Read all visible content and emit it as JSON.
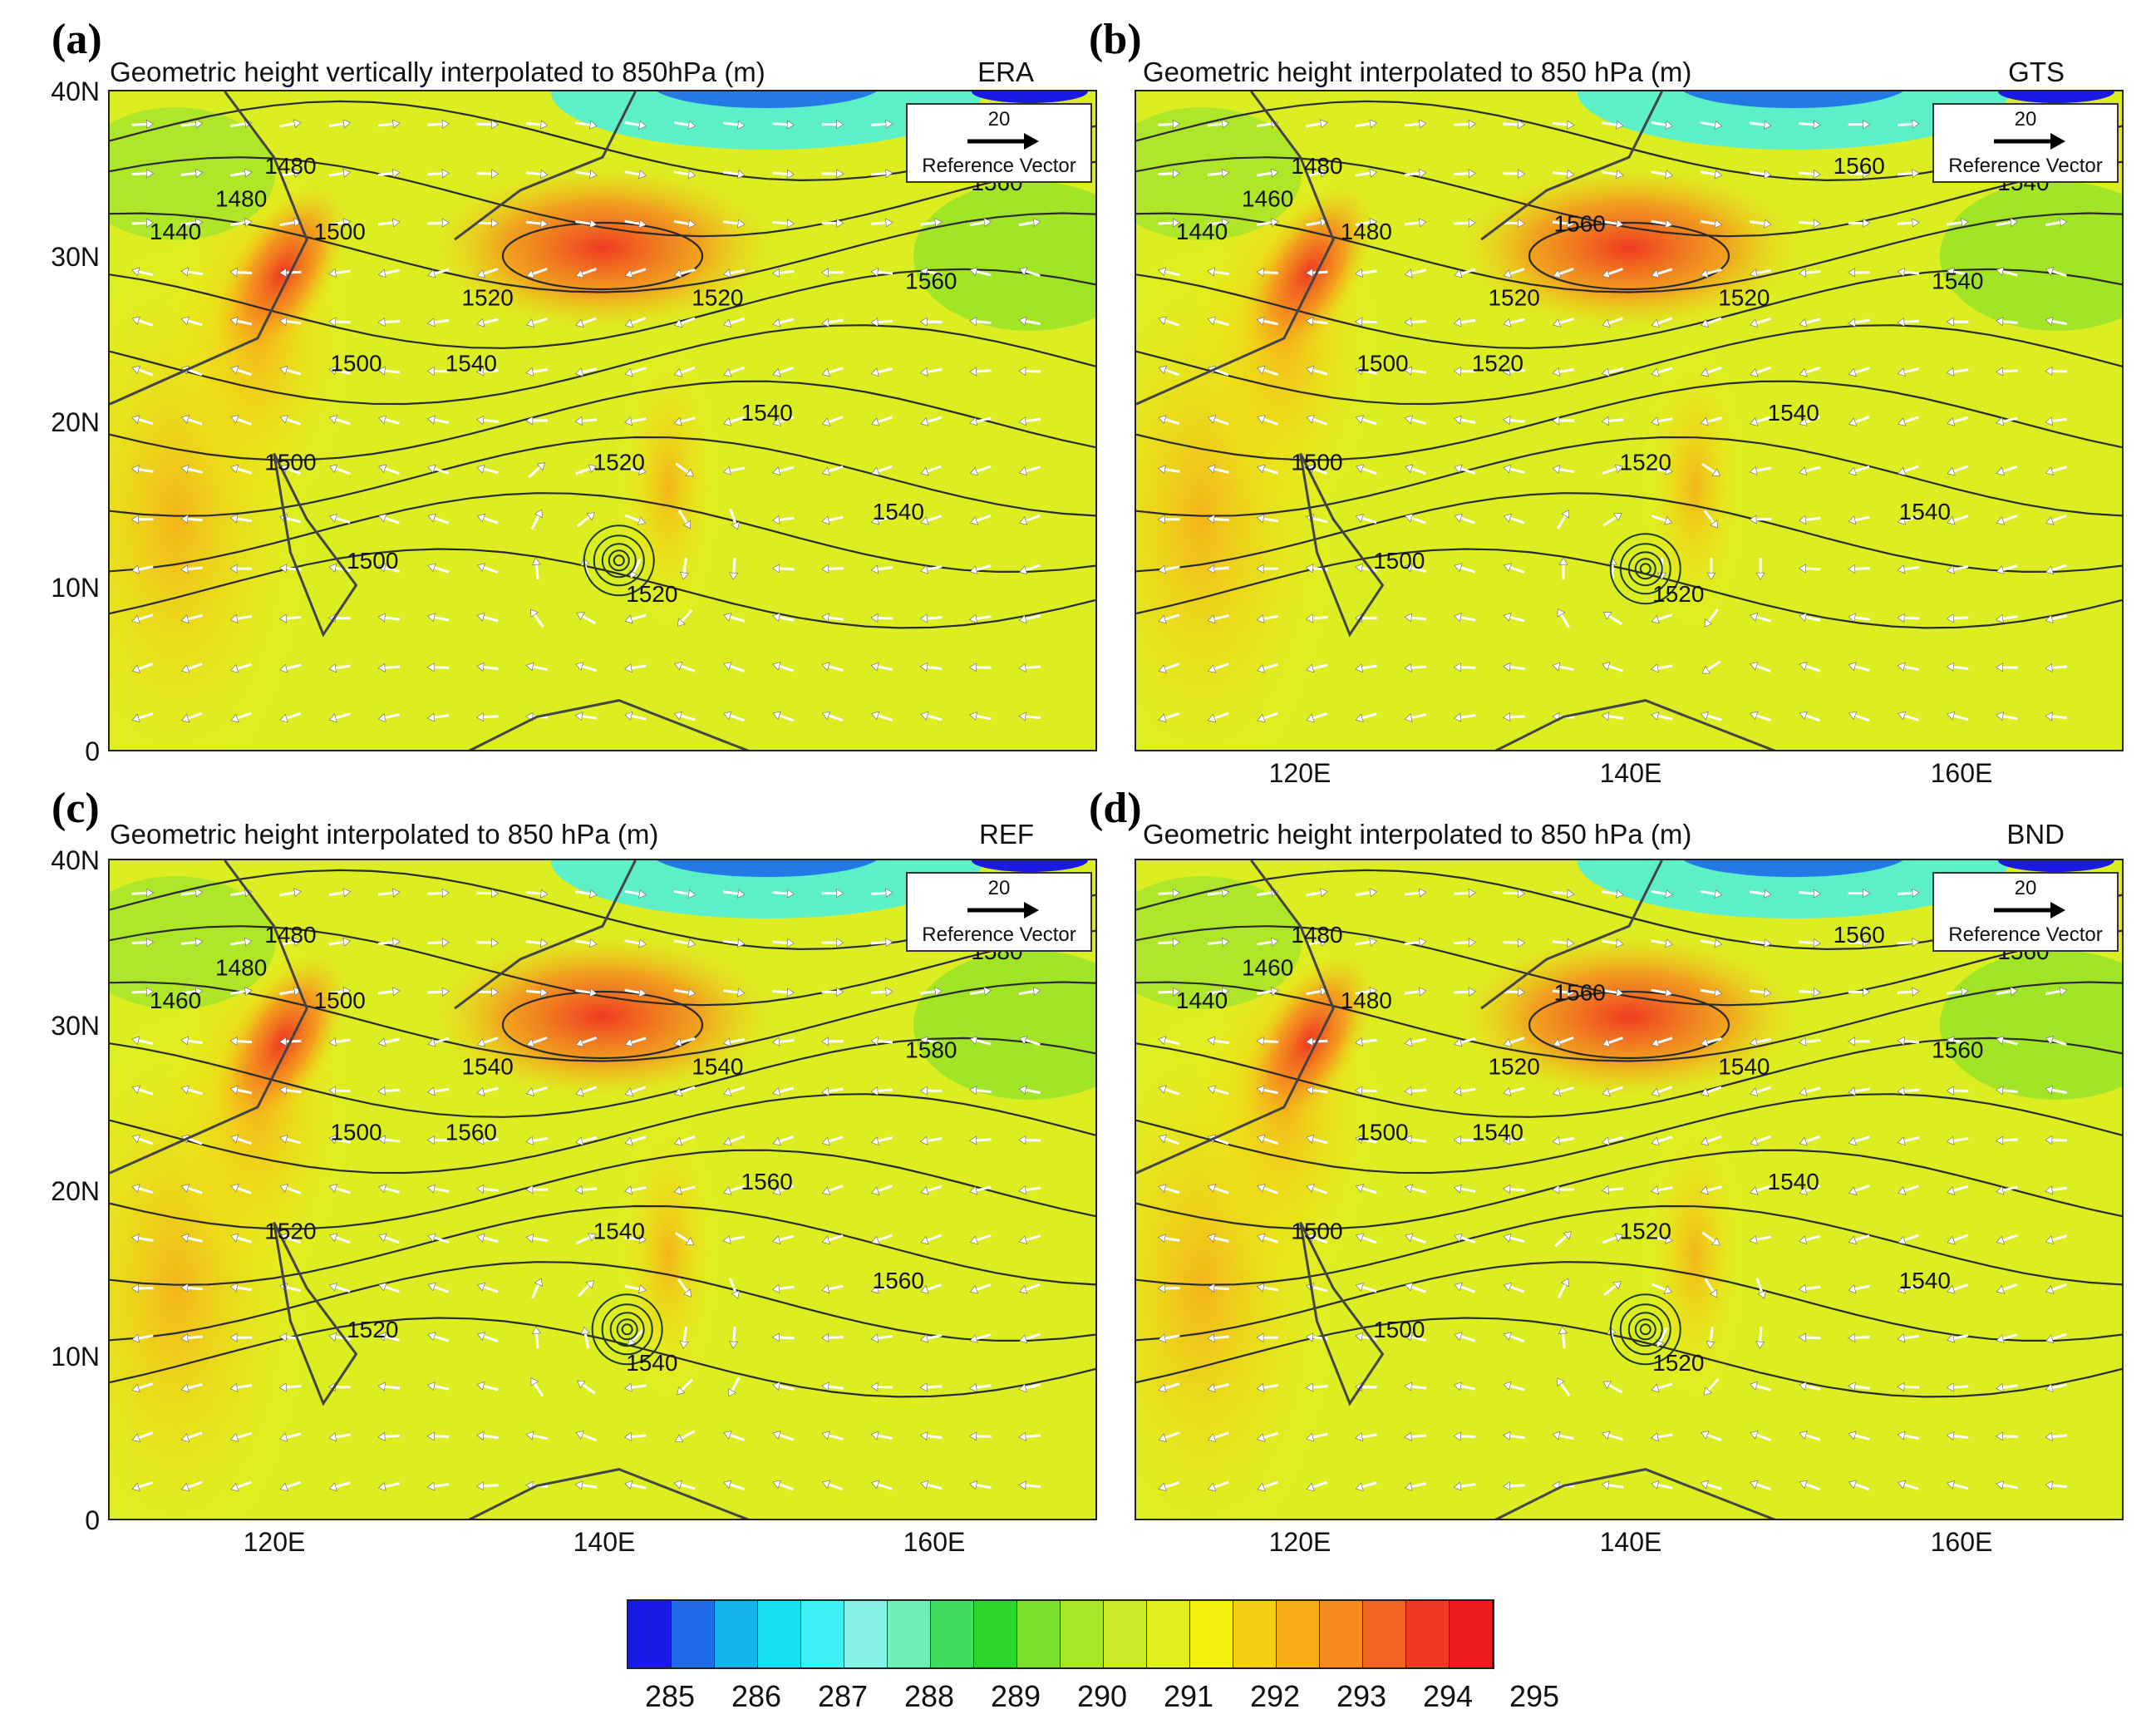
{
  "figure": {
    "colorbar_colors": [
      "#1a1ae6",
      "#1f6be8",
      "#13b3ee",
      "#17dff2",
      "#3df0f3",
      "#87f2e6",
      "#6ff0b3",
      "#3fdd5e",
      "#2bd62b",
      "#7be02a",
      "#a8e62a",
      "#c9ec27",
      "#e2ee1d",
      "#f6f010",
      "#f5cd15",
      "#f7ad18",
      "#f68c1e",
      "#f36422",
      "#ef3a22",
      "#eb1b1f"
    ],
    "colorbar_labels": [
      "285",
      "286",
      "287",
      "288",
      "289",
      "290",
      "291",
      "292",
      "293",
      "294",
      "295"
    ]
  },
  "panels": [
    {
      "label": "(a)",
      "title": "Geometric height vertically interpolated to 850hPa (m)",
      "source": "ERA",
      "ref_vector_value": "20",
      "ref_vector_label": "Reference Vector",
      "lat_labels": [
        "40N",
        "30N",
        "20N",
        "10N",
        "0"
      ],
      "lon_labels": [],
      "contour_labels": [
        "1440",
        "1480",
        "1480",
        "1500",
        "1500",
        "1500",
        "1500",
        "1520",
        "1520",
        "1520",
        "1520",
        "1540",
        "1540",
        "1540",
        "1560",
        "1560"
      ],
      "vortex": {
        "lon": 141,
        "lat": 11.5
      }
    },
    {
      "label": "(b)",
      "title": "Geometric height interpolated to 850 hPa (m)",
      "source": "GTS",
      "ref_vector_value": "20",
      "ref_vector_label": "Reference Vector",
      "lat_labels": [],
      "lon_labels": [
        "120E",
        "140E",
        "160E"
      ],
      "contour_labels": [
        "1440",
        "1460",
        "1480",
        "1480",
        "1500",
        "1500",
        "1500",
        "1520",
        "1520",
        "1520",
        "1520",
        "1520",
        "1540",
        "1540",
        "1540",
        "1540",
        "1560",
        "1560"
      ],
      "vortex": {
        "lon": 141,
        "lat": 11
      }
    },
    {
      "label": "(c)",
      "title": "Geometric height interpolated to 850 hPa (m)",
      "source": "REF",
      "ref_vector_value": "20",
      "ref_vector_label": "Reference Vector",
      "lat_labels": [
        "40N",
        "30N",
        "20N",
        "10N",
        "0"
      ],
      "lon_labels": [
        "120E",
        "140E",
        "160E"
      ],
      "contour_labels": [
        "1460",
        "1480",
        "1480",
        "1500",
        "1500",
        "1520",
        "1520",
        "1540",
        "1540",
        "1540",
        "1540",
        "1560",
        "1560",
        "1560",
        "1580",
        "1580"
      ],
      "vortex": {
        "lon": 141.5,
        "lat": 11.5
      }
    },
    {
      "label": "(d)",
      "title": "Geometric height interpolated to 850 hPa (m)",
      "source": "BND",
      "ref_vector_value": "20",
      "ref_vector_label": "Reference Vector",
      "lat_labels": [],
      "lon_labels": [
        "120E",
        "140E",
        "160E"
      ],
      "contour_labels": [
        "1440",
        "1460",
        "1480",
        "1480",
        "1500",
        "1500",
        "1500",
        "1520",
        "1520",
        "1520",
        "1540",
        "1540",
        "1540",
        "1540",
        "1560",
        "1560",
        "1560",
        "1560"
      ],
      "vortex": {
        "lon": 141,
        "lat": 11.5
      }
    }
  ]
}
